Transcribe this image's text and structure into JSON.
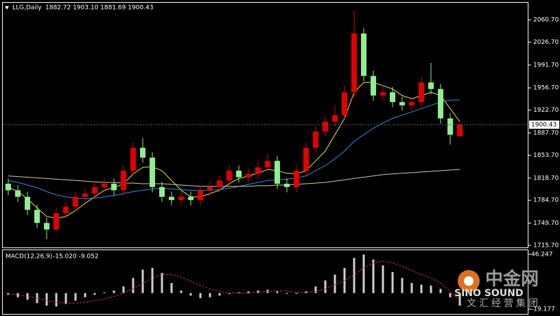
{
  "chart_data": {
    "type": "candlestick",
    "title": "LLG,Daily",
    "ohlc_text": "1882.72 1903.10 1881.69 1900.43",
    "last_price_label": {
      "value": 1900.43,
      "label": "1900.43"
    },
    "up_color": "#e00000",
    "down_color": "#90ee90",
    "open": [
      1810,
      1800,
      1790,
      1770,
      1750,
      1740,
      1765,
      1775,
      1790,
      1795,
      1805,
      1810,
      1800,
      1830,
      1865,
      1850,
      1805,
      1790,
      1785,
      1790,
      1785,
      1800,
      1805,
      1815,
      1830,
      1820,
      1825,
      1835,
      1845,
      1810,
      1805,
      1830,
      1865,
      1890,
      1905,
      1915,
      1950,
      2040,
      1975,
      1945,
      1950,
      1935,
      1930,
      1935,
      1965,
      1955,
      1910,
      1882.72
    ],
    "high": [
      1818,
      1808,
      1798,
      1778,
      1758,
      1773,
      1783,
      1798,
      1803,
      1813,
      1818,
      1818,
      1838,
      1873,
      1880,
      1858,
      1813,
      1798,
      1798,
      1798,
      1808,
      1813,
      1823,
      1838,
      1838,
      1833,
      1843,
      1855,
      1853,
      1818,
      1838,
      1873,
      1898,
      1913,
      1930,
      1960,
      2075,
      2048,
      1983,
      1960,
      1958,
      1943,
      1943,
      1973,
      1995,
      1963,
      1918,
      1903.1
    ],
    "low": [
      1792,
      1782,
      1762,
      1742,
      1725,
      1735,
      1757,
      1767,
      1782,
      1787,
      1797,
      1792,
      1792,
      1822,
      1842,
      1797,
      1782,
      1777,
      1777,
      1777,
      1777,
      1792,
      1797,
      1807,
      1812,
      1812,
      1817,
      1827,
      1802,
      1797,
      1797,
      1822,
      1857,
      1882,
      1897,
      1907,
      1942,
      1967,
      1937,
      1937,
      1927,
      1922,
      1922,
      1927,
      1947,
      1902,
      1870,
      1881.69
    ],
    "close": [
      1800,
      1790,
      1770,
      1750,
      1740,
      1765,
      1775,
      1790,
      1795,
      1805,
      1810,
      1800,
      1830,
      1865,
      1850,
      1805,
      1790,
      1785,
      1790,
      1785,
      1800,
      1805,
      1815,
      1830,
      1820,
      1825,
      1835,
      1845,
      1810,
      1805,
      1830,
      1865,
      1890,
      1905,
      1915,
      1950,
      2040,
      1975,
      1945,
      1950,
      1935,
      1930,
      1935,
      1965,
      1955,
      1910,
      1885,
      1900.43
    ],
    "moving_averages": [
      {
        "color": "#e8e84a",
        "values": [
          1805,
          1798,
          1787,
          1773,
          1760,
          1757,
          1760,
          1769,
          1780,
          1790,
          1800,
          1804,
          1810,
          1825,
          1835,
          1836,
          1830,
          1815,
          1800,
          1790,
          1790,
          1795,
          1800,
          1810,
          1818,
          1822,
          1826,
          1832,
          1830,
          1826,
          1825,
          1830,
          1845,
          1860,
          1885,
          1910,
          1950,
          1965,
          1965,
          1960,
          1955,
          1945,
          1940,
          1945,
          1950,
          1945,
          1925,
          1905
        ]
      },
      {
        "color": "#2f8fe0",
        "values": [
          1815,
          1812,
          1808,
          1804,
          1798,
          1793,
          1790,
          1788,
          1787,
          1788,
          1790,
          1792,
          1795,
          1798,
          1800,
          1802,
          1803,
          1802,
          1801,
          1800,
          1800,
          1800,
          1801,
          1803,
          1806,
          1809,
          1812,
          1815,
          1816,
          1817,
          1819,
          1822,
          1830,
          1838,
          1848,
          1860,
          1875,
          1885,
          1895,
          1903,
          1910,
          1915,
          1920,
          1925,
          1930,
          1935,
          1938,
          1938
        ]
      },
      {
        "color": "#d8c8a8",
        "values": [
          1822,
          1821,
          1820,
          1819,
          1818,
          1817,
          1816,
          1815,
          1814,
          1813,
          1812,
          1812,
          1811,
          1811,
          1810,
          1810,
          1810,
          1809,
          1808,
          1807,
          1806,
          1806,
          1806,
          1806,
          1806,
          1806,
          1807,
          1807,
          1808,
          1808,
          1809,
          1810,
          1811,
          1812,
          1814,
          1816,
          1818,
          1820,
          1822,
          1824,
          1825,
          1826,
          1827,
          1828,
          1829,
          1830,
          1831,
          1832
        ]
      }
    ],
    "ylim": [
      1712.5,
      2087
    ],
    "yticks": [
      {
        "value": 2060.7,
        "label": "2060.70"
      },
      {
        "value": 2026.7,
        "label": "2026.70"
      },
      {
        "value": 1991.7,
        "label": "1991.70"
      },
      {
        "value": 1956.7,
        "label": "1956.70"
      },
      {
        "value": 1922.7,
        "label": "1922.70"
      },
      {
        "value": 1887.7,
        "label": "1887.70"
      },
      {
        "value": 1853.7,
        "label": "1853.70"
      },
      {
        "value": 1818.7,
        "label": "1818.70"
      },
      {
        "value": 1784.7,
        "label": "1784.70"
      },
      {
        "value": 1749.7,
        "label": "1749.70"
      },
      {
        "value": 1715.7,
        "label": "1715.70"
      }
    ],
    "macd": {
      "title": "MACD(12,26,9)",
      "values_text": "-15.020 -9.052",
      "histogram_color": "#d0d0d0",
      "signal_color": "#e03030",
      "histogram": [
        -2,
        -5,
        -8,
        -12,
        -15,
        -16,
        -13,
        -9,
        -5,
        -2,
        1,
        3,
        8,
        18,
        28,
        30,
        24,
        12,
        3,
        -3,
        -6,
        -5,
        -3,
        -1,
        1,
        2,
        3,
        4,
        2,
        -1,
        -1,
        2,
        8,
        15,
        22,
        30,
        42,
        46,
        40,
        33,
        25,
        18,
        12,
        10,
        9,
        5,
        -5,
        -15.02
      ],
      "signal": [
        -1,
        -2,
        -4,
        -6,
        -9,
        -11,
        -12,
        -12,
        -11,
        -9,
        -7,
        -4,
        0,
        5,
        12,
        18,
        22,
        22,
        19,
        14,
        9,
        5,
        2,
        0,
        0,
        0,
        1,
        2,
        3,
        2,
        1,
        1,
        2,
        5,
        10,
        15,
        22,
        30,
        36,
        38,
        36,
        32,
        27,
        22,
        18,
        12,
        2,
        -9.052
      ],
      "ylim": [
        -24.9,
        51.15
      ],
      "yticks": [
        46.247,
        -19.177
      ]
    },
    "watermark": {
      "name": "中金网",
      "english": "SINO SOUND",
      "slogan": "文汇经营集团"
    }
  }
}
